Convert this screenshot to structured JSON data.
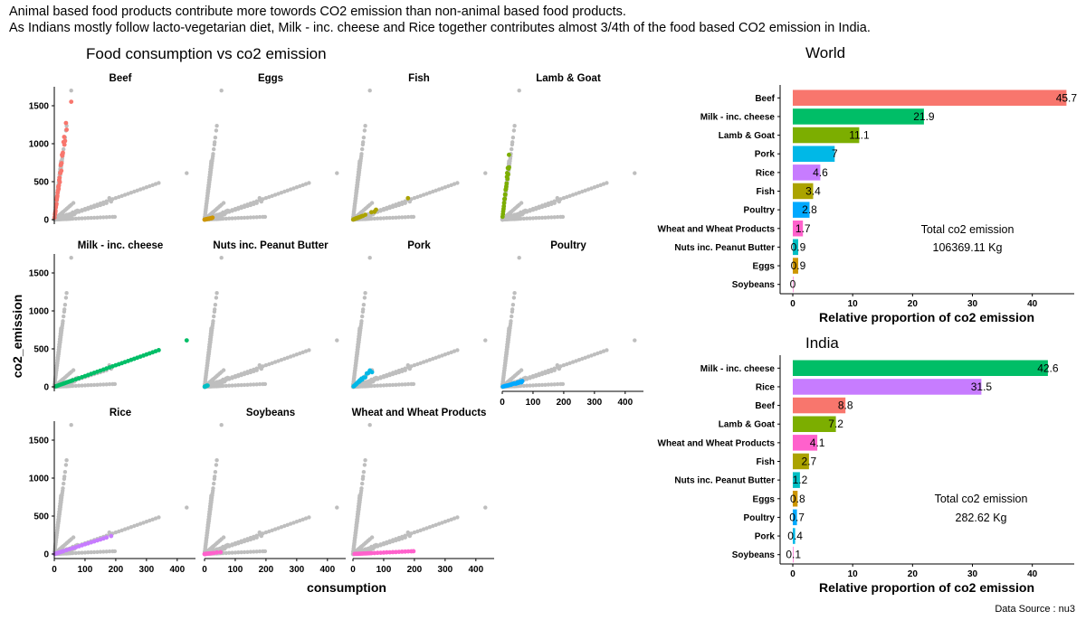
{
  "header": {
    "line1": "Animal based food products contribute more towords CO2 emission than non-animal based food products.",
    "line2": "As Indians mostly follow lacto-vegetarian diet, Milk - inc. cheese and Rice together contributes almost 3/4th of the food based CO2 emission in India."
  },
  "source": "Data Source : nu3",
  "chart_data": [
    {
      "type": "scatter",
      "title": "Food consumption vs co2 emission",
      "xlabel": "consumption",
      "ylabel": "co2_emission",
      "xlim": [
        0,
        430
      ],
      "ylim": [
        0,
        1750
      ],
      "x_ticks": [
        0,
        100,
        200,
        300,
        400
      ],
      "y_ticks": [
        0,
        500,
        1000,
        1500
      ],
      "background_color": "#bebebe",
      "facets": [
        {
          "name": "Beef",
          "color": "#F8766D",
          "ratio": 30.9,
          "x": [
            1,
            2,
            3,
            4,
            5,
            6,
            7,
            8,
            9,
            10,
            11,
            12,
            13,
            14,
            15,
            16,
            17,
            18,
            19,
            20,
            21,
            22,
            23,
            24,
            25,
            26,
            27,
            28,
            30,
            32,
            33,
            35,
            38,
            40,
            55
          ],
          "jitter": true
        },
        {
          "name": "Eggs",
          "color": "#CD9600",
          "ratio": 0.92,
          "x": [
            0,
            2,
            4,
            6,
            8,
            10,
            12,
            14,
            16,
            18,
            20,
            22,
            24,
            26
          ],
          "jitter": true
        },
        {
          "name": "Fish",
          "color": "#ABA300",
          "ratio": 1.59,
          "x": [
            1,
            3,
            5,
            8,
            10,
            13,
            15,
            18,
            20,
            24,
            28,
            32,
            40,
            60,
            70,
            75,
            179
          ],
          "jitter": true
        },
        {
          "name": "Lamb & Goat",
          "color": "#7CAE00",
          "ratio": 35,
          "x": [
            1,
            2,
            3,
            4,
            5,
            6,
            7,
            8,
            9,
            10,
            11,
            12,
            13,
            14,
            15,
            16,
            17,
            18,
            19,
            20,
            21,
            22,
            21.7
          ],
          "jitter": true
        },
        {
          "name": "Milk - inc. cheese",
          "color": "#00BE67",
          "ratio": 1.42,
          "x": [
            5,
            10,
            15,
            20,
            25,
            30,
            35,
            40,
            45,
            50,
            55,
            60,
            70,
            80,
            90,
            100,
            110,
            120,
            130,
            140,
            150,
            160,
            170,
            180,
            190,
            200,
            210,
            220,
            230,
            240,
            250,
            260,
            270,
            280,
            290,
            300,
            310,
            320,
            330,
            340,
            431
          ],
          "jitter": false
        },
        {
          "name": "Nuts inc. Peanut Butter",
          "color": "#00BFC4",
          "ratio": 1.77,
          "x": [
            0.5,
            1,
            1.5,
            2,
            2.5,
            3,
            3.5,
            4,
            5,
            6,
            7,
            8,
            10
          ],
          "jitter": true
        },
        {
          "name": "Pork",
          "color": "#00B8E7",
          "ratio": 3.54,
          "x": [
            2,
            4,
            6,
            8,
            10,
            12,
            14,
            16,
            18,
            20,
            22,
            24,
            26,
            28,
            30,
            35,
            40,
            45,
            50,
            55,
            62
          ],
          "jitter": true
        },
        {
          "name": "Poultry",
          "color": "#00A9FF",
          "ratio": 1.07,
          "x": [
            2,
            5,
            8,
            11,
            14,
            17,
            20,
            23,
            26,
            29,
            32,
            35,
            38,
            41,
            44,
            47,
            50,
            53,
            56,
            59,
            62,
            65
          ],
          "jitter": true
        },
        {
          "name": "Rice",
          "color": "#C77CFF",
          "ratio": 1.28,
          "x": [
            2,
            5,
            10,
            15,
            20,
            25,
            30,
            40,
            50,
            60,
            70,
            80,
            90,
            100,
            110,
            120,
            130,
            140,
            150,
            160,
            170,
            185
          ],
          "jitter": false
        },
        {
          "name": "Soybeans",
          "color": "#FF61CC",
          "ratio": 0.45,
          "x": [
            0,
            1,
            2,
            3,
            5,
            8,
            10,
            15,
            20,
            25,
            30,
            40,
            52
          ],
          "jitter": true
        },
        {
          "name": "Wheat and Wheat Products",
          "color": "#FF61CC",
          "ratio": 0.19,
          "x": [
            5,
            10,
            15,
            20,
            25,
            30,
            35,
            40,
            45,
            50,
            55,
            60,
            70,
            80,
            90,
            100,
            110,
            120,
            130,
            140,
            150,
            160,
            170,
            180,
            190,
            197
          ],
          "jitter": false
        }
      ]
    },
    {
      "type": "bar",
      "orientation": "horizontal",
      "title": "World",
      "xlabel": "Relative proportion of co2 emission",
      "xlim": [
        0,
        47
      ],
      "x_ticks": [
        0,
        10,
        20,
        30,
        40
      ],
      "categories": [
        "Beef",
        "Milk - inc. cheese",
        "Lamb & Goat",
        "Pork",
        "Rice",
        "Fish",
        "Poultry",
        "Wheat and Wheat Products",
        "Nuts inc. Peanut Butter",
        "Eggs",
        "Soybeans"
      ],
      "values": [
        45.7,
        21.9,
        11.1,
        7,
        4.6,
        3.4,
        2.8,
        1.7,
        0.9,
        0.9,
        0
      ],
      "labels": [
        "45.7",
        "21.9",
        "11.1",
        "7",
        "4.6",
        "3.4",
        "2.8",
        "1.7",
        "0.9",
        "0.9",
        "0"
      ],
      "colors": [
        "#F8766D",
        "#00BE67",
        "#7CAE00",
        "#00B8E7",
        "#C77CFF",
        "#ABA300",
        "#00A9FF",
        "#FF61CC",
        "#00BFC4",
        "#CD9600",
        "#FF61CC"
      ],
      "annotation": [
        "Total co2 emission",
        "106369.11 Kg"
      ]
    },
    {
      "type": "bar",
      "orientation": "horizontal",
      "title": "India",
      "xlabel": "Relative proportion of co2 emission",
      "xlim": [
        0,
        47
      ],
      "x_ticks": [
        0,
        10,
        20,
        30,
        40
      ],
      "categories": [
        "Milk - inc. cheese",
        "Rice",
        "Beef",
        "Lamb & Goat",
        "Wheat and Wheat Products",
        "Fish",
        "Nuts inc. Peanut Butter",
        "Eggs",
        "Poultry",
        "Pork",
        "Soybeans"
      ],
      "values": [
        42.6,
        31.5,
        8.8,
        7.2,
        4.1,
        2.7,
        1.2,
        0.8,
        0.7,
        0.4,
        0.1
      ],
      "labels": [
        "42.6",
        "31.5",
        "8.8",
        "7.2",
        "4.1",
        "2.7",
        "1.2",
        "0.8",
        "0.7",
        "0.4",
        "0.1"
      ],
      "colors": [
        "#00BE67",
        "#C77CFF",
        "#F8766D",
        "#7CAE00",
        "#FF61CC",
        "#ABA300",
        "#00BFC4",
        "#CD9600",
        "#00A9FF",
        "#00B8E7",
        "#FF61CC"
      ],
      "annotation": [
        "Total co2 emission",
        "282.62 Kg"
      ]
    }
  ]
}
